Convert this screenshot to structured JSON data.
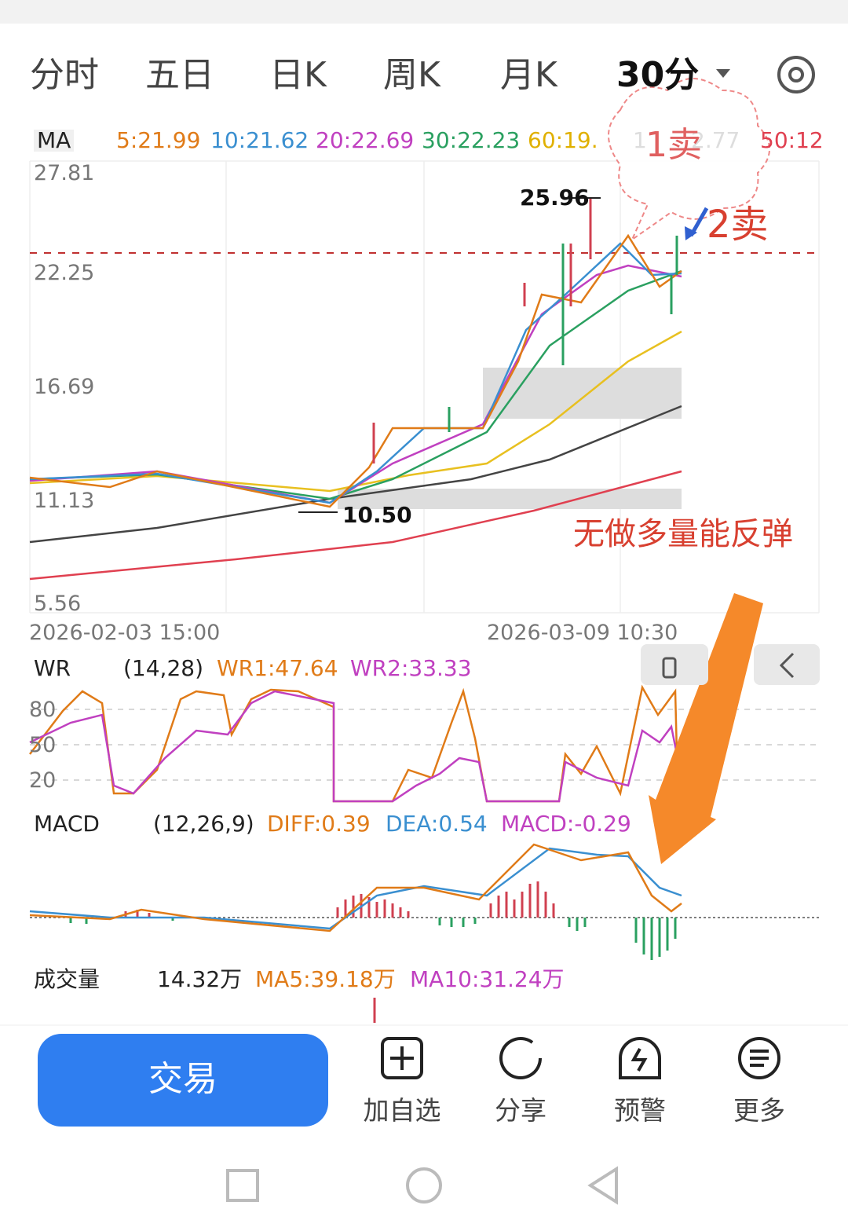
{
  "tabs": [
    "分时",
    "五日",
    "日K",
    "周K",
    "月K",
    "30分"
  ],
  "ma_bar": {
    "label": "MA",
    "items": [
      "5:21.99",
      "10:21.62",
      "20:22.69",
      "30:22.23",
      "60:19.",
      "1",
      "2.77",
      "50:12"
    ]
  },
  "price_axis": [
    "27.81",
    "22.25",
    "16.69",
    "11.13",
    "5.56"
  ],
  "price_marks": {
    "high": "25.96",
    "low": "10.50"
  },
  "dates": [
    "2026-02-03 15:00",
    "2026-03-09 10:30"
  ],
  "annotations": {
    "sell1": "1卖",
    "sell2": "2卖",
    "note": "无做多量能反弹"
  },
  "wr": {
    "label": "WR",
    "params": "(14,28)",
    "wr1": "WR1:47.64",
    "wr2": "WR2:33.33",
    "axis": [
      "80",
      "50",
      "20"
    ]
  },
  "macd": {
    "label": "MACD",
    "params": "(12,26,9)",
    "diff": "DIFF:0.39",
    "dea": "DEA:0.54",
    "macd": "MACD:-0.29"
  },
  "volume": {
    "label": "成交量",
    "value": "14.32万",
    "ma5": "MA5:39.18万",
    "ma10": "MA10:31.24万"
  },
  "bottom": {
    "trade": "交易",
    "actions": [
      "加自选",
      "分享",
      "预警",
      "更多"
    ]
  }
}
